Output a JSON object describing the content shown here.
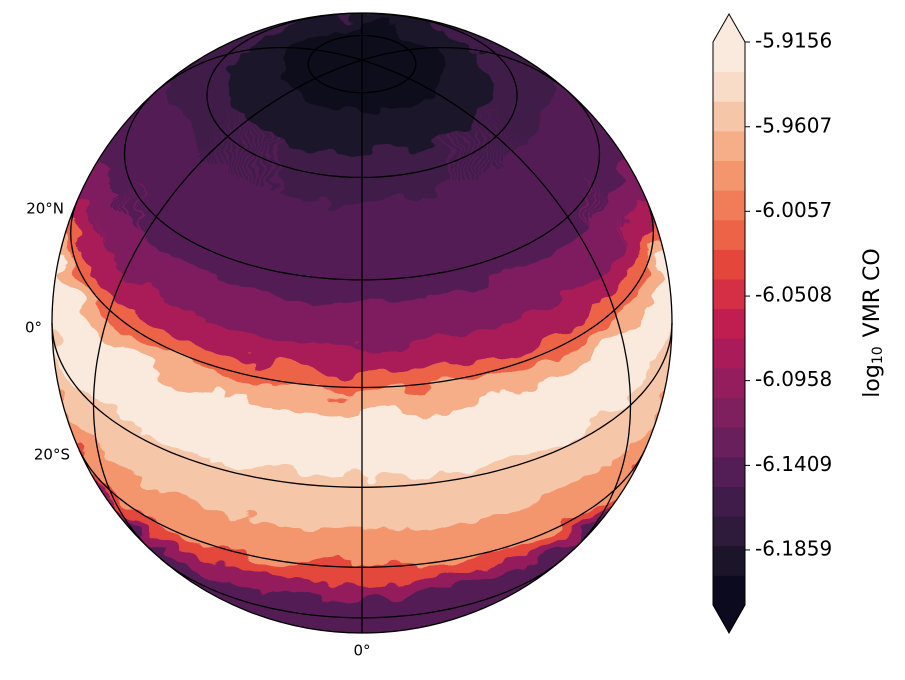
{
  "chart_data": {
    "type": "orthographic-map",
    "lat_labels": [
      "20°N",
      "0°",
      "20°S"
    ],
    "lon_labels": [
      "0°"
    ],
    "colorbar": {
      "label": {
        "prefix": "log",
        "subscript": "10",
        "suffix": "VMR CO"
      },
      "clim": [
        -6.2152,
        -5.9156
      ],
      "ticks": [
        -5.9156,
        -5.9607,
        -6.0057,
        -6.0508,
        -6.0958,
        -6.1409,
        -6.1859
      ],
      "extend": "both",
      "colors": [
        "#0b0a1f",
        "#1c1429",
        "#2e1a3b",
        "#3f1c4a",
        "#531e55",
        "#681f5c",
        "#7e1f5e",
        "#941e5d",
        "#aa1b59",
        "#c01e50",
        "#d42f44",
        "#e4463b",
        "#ec6347",
        "#f07d58",
        "#f3966d",
        "#f5ae88",
        "#f6c6a8",
        "#f8dcc8",
        "#faeadd"
      ]
    }
  }
}
